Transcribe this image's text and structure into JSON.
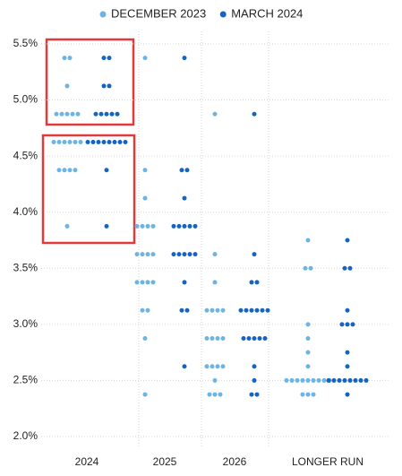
{
  "chart_data": {
    "type": "dot",
    "categories": [
      "2024",
      "2025",
      "2026",
      "LONGER RUN"
    ],
    "series": [
      {
        "name": "DECEMBER 2023",
        "color": "#6cb4e4",
        "values": [
          [
            5.375,
            5.375,
            5.125,
            4.875,
            4.875,
            4.875,
            4.875,
            4.875,
            4.625,
            4.625,
            4.625,
            4.625,
            4.625,
            4.625,
            4.375,
            4.375,
            4.375,
            4.375,
            3.875
          ],
          [
            5.375,
            4.375,
            4.125,
            3.875,
            3.875,
            3.875,
            3.875,
            3.625,
            3.625,
            3.625,
            3.625,
            3.375,
            3.375,
            3.375,
            3.375,
            3.125,
            3.125,
            2.875,
            2.375
          ],
          [
            4.875,
            3.625,
            3.375,
            3.125,
            3.125,
            3.125,
            3.125,
            2.875,
            2.875,
            2.875,
            2.875,
            2.625,
            2.625,
            2.625,
            2.625,
            2.5,
            2.375,
            2.375,
            2.375
          ],
          [
            3.75,
            3.5,
            3.5,
            3.0,
            2.875,
            2.75,
            2.625,
            2.5,
            2.5,
            2.5,
            2.5,
            2.5,
            2.5,
            2.5,
            2.5,
            2.5,
            2.375,
            2.375,
            2.375
          ]
        ]
      },
      {
        "name": "MARCH 2024",
        "color": "#1565c0",
        "values": [
          [
            5.375,
            5.375,
            5.125,
            5.125,
            4.875,
            4.875,
            4.875,
            4.875,
            4.875,
            4.625,
            4.625,
            4.625,
            4.625,
            4.625,
            4.625,
            4.625,
            4.625,
            4.375,
            3.875
          ],
          [
            5.375,
            4.375,
            4.375,
            4.125,
            3.875,
            3.875,
            3.875,
            3.875,
            3.875,
            3.625,
            3.625,
            3.625,
            3.625,
            3.625,
            3.375,
            3.125,
            3.125,
            2.625
          ],
          [
            4.875,
            3.625,
            3.375,
            3.375,
            3.125,
            3.125,
            3.125,
            3.125,
            3.125,
            3.125,
            2.875,
            2.875,
            2.875,
            2.875,
            2.875,
            2.625,
            2.5,
            2.375,
            2.375
          ],
          [
            3.75,
            3.5,
            3.5,
            3.125,
            3.0,
            3.0,
            3.0,
            2.75,
            2.625,
            2.5,
            2.5,
            2.5,
            2.5,
            2.5,
            2.5,
            2.5,
            2.5,
            2.375
          ]
        ]
      }
    ],
    "ylim": [
      2.0,
      5.5
    ],
    "yticks": [
      {
        "value": 2.0,
        "label": "2.0%"
      },
      {
        "value": 2.5,
        "label": "2.5%"
      },
      {
        "value": 3.0,
        "label": "3.0%"
      },
      {
        "value": 3.5,
        "label": "3.5%"
      },
      {
        "value": 4.0,
        "label": "4.0%"
      },
      {
        "value": 4.5,
        "label": "4.5%"
      },
      {
        "value": 5.0,
        "label": "5.0%"
      },
      {
        "value": 5.5,
        "label": "5.5%"
      }
    ],
    "grid": true,
    "legend": "top"
  }
}
